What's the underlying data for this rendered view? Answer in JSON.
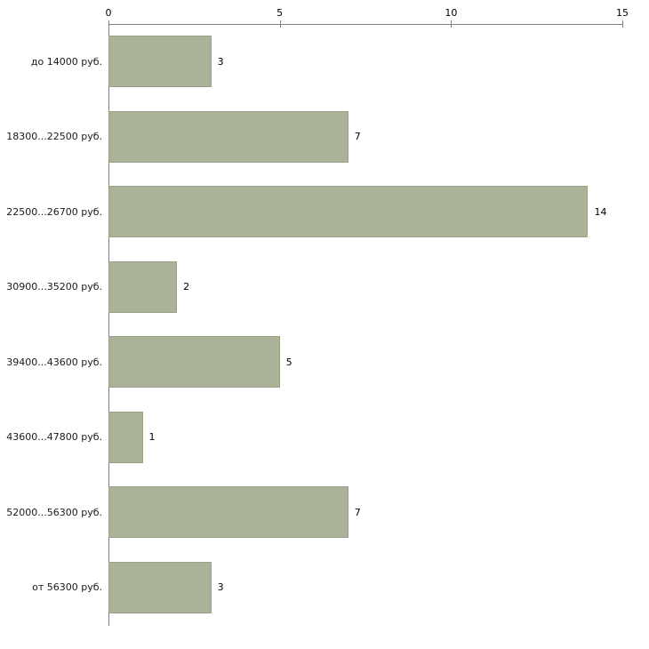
{
  "chart_data": {
    "type": "bar",
    "orientation": "horizontal",
    "title": "",
    "xlabel": "",
    "ylabel": "",
    "categories": [
      "до 14000 руб.",
      "18300...22500 руб.",
      "22500...26700 руб.",
      "30900...35200 руб.",
      "39400...43600 руб.",
      "43600...47800 руб.",
      "52000...56300 руб.",
      "от 56300 руб."
    ],
    "values": [
      3,
      7,
      14,
      2,
      5,
      1,
      7,
      3
    ],
    "x_ticks": [
      0,
      5,
      10,
      15
    ],
    "xlim": [
      0,
      15
    ],
    "grid": false,
    "legend": false,
    "bar_color": "#aab29a",
    "bar_border_color": "#99a287",
    "axis_color": "#7f7f7f",
    "text_color": "#1a1a1a",
    "background_color": "#ffffff"
  }
}
